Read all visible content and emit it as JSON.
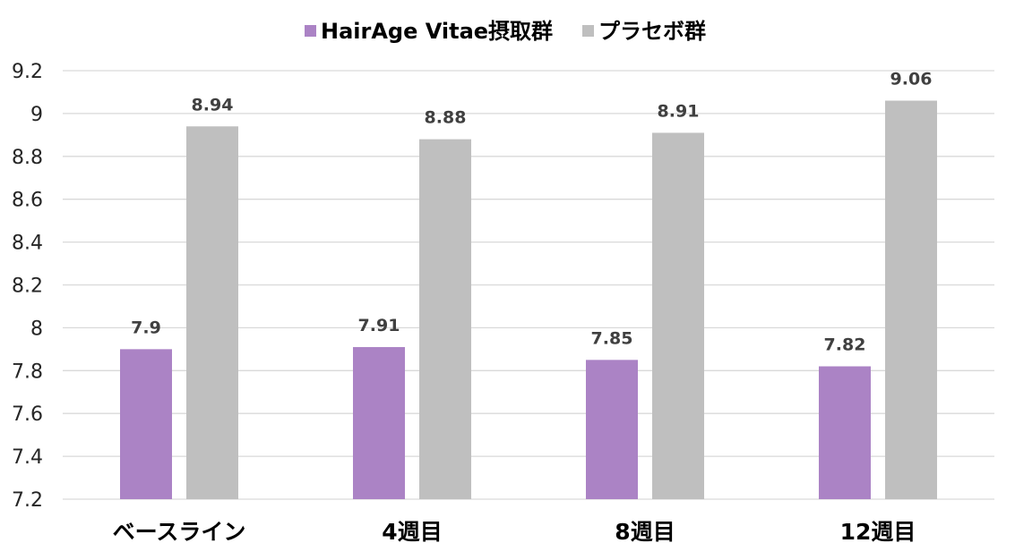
{
  "chart_data": {
    "type": "bar",
    "categories": [
      "ベースライン",
      "4週目",
      "8週目",
      "12週目"
    ],
    "series": [
      {
        "name": "HairAge Vitae摂取群",
        "color": "#ab83c5",
        "values": [
          7.9,
          7.91,
          7.85,
          7.82
        ]
      },
      {
        "name": "プラセボ群",
        "color": "#bfbfbf",
        "values": [
          8.94,
          8.88,
          8.91,
          9.06
        ]
      }
    ],
    "ylim": [
      7.2,
      9.2
    ],
    "yticks": [
      "7.2",
      "7.4",
      "7.6",
      "7.8",
      "8",
      "8.2",
      "8.4",
      "8.6",
      "8.8",
      "9",
      "9.2"
    ],
    "grid": true,
    "legend_position": "top-center",
    "xlabel": "",
    "ylabel": ""
  }
}
